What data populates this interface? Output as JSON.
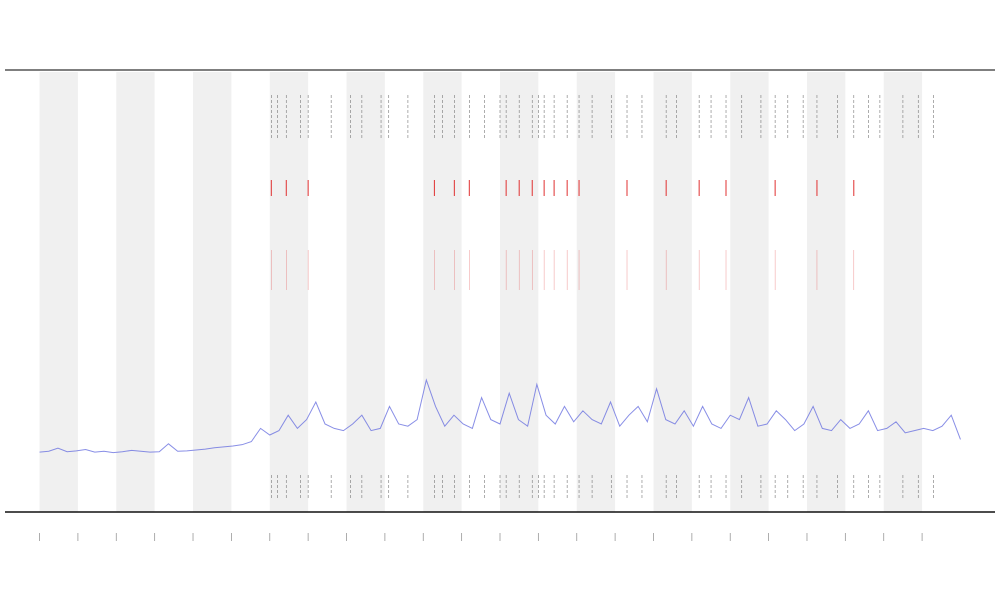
{
  "chart_data": {
    "type": "line",
    "x": [
      0,
      0.24,
      0.48,
      0.72,
      0.96,
      1.2,
      1.44,
      1.68,
      1.92,
      2.16,
      2.4,
      2.64,
      2.88,
      3.12,
      3.36,
      3.6,
      3.84,
      4.08,
      4.32,
      4.56,
      4.8,
      5.04,
      5.28,
      5.52,
      5.76,
      6,
      6.24,
      6.48,
      6.72,
      6.96,
      7.2,
      7.44,
      7.68,
      7.92,
      8.16,
      8.4,
      8.64,
      8.88,
      9.12,
      9.36,
      9.6,
      9.84,
      10.08,
      10.32,
      10.56,
      10.8,
      11.04,
      11.28,
      11.52,
      11.76,
      12,
      12.24,
      12.48,
      12.72,
      12.96,
      13.2,
      13.44,
      13.68,
      13.92,
      14.16,
      14.4,
      14.64,
      14.88,
      15.12,
      15.36,
      15.6,
      15.84,
      16.08,
      16.32,
      16.56,
      16.8,
      17.04,
      17.28,
      17.52,
      17.76,
      18,
      18.24,
      18.48,
      18.72,
      18.96,
      19.2,
      19.44,
      19.68,
      19.92,
      20.16,
      20.4,
      20.64,
      20.88,
      21.12,
      21.36,
      21.6,
      21.84,
      22.08,
      22.32,
      22.56,
      22.8,
      23.04,
      23.28,
      23.52,
      23.76,
      24
    ],
    "series": [
      {
        "color": "#6a72e0",
        "values": [
          13.6,
          13.8,
          14.5,
          13.7,
          13.9,
          14.2,
          13.6,
          13.8,
          13.5,
          13.7,
          14,
          13.8,
          13.6,
          13.7,
          15.5,
          13.8,
          13.9,
          14.1,
          14.3,
          14.6,
          14.8,
          15,
          15.3,
          16,
          19,
          17.5,
          18.5,
          22,
          19,
          21,
          25,
          20,
          19,
          18.5,
          20,
          22,
          18.5,
          19,
          24,
          20,
          19.5,
          21,
          30,
          24,
          19.5,
          22,
          20,
          19,
          26,
          21,
          20,
          27,
          21,
          19.5,
          29,
          22,
          20,
          24,
          20.5,
          23,
          21,
          20,
          25,
          19.5,
          22,
          24,
          20.5,
          28,
          21,
          20,
          23,
          19.5,
          24,
          20,
          19,
          22,
          21,
          26,
          19.5,
          20,
          23,
          21,
          18.5,
          20,
          24,
          19,
          18.5,
          21,
          19,
          20,
          23,
          18.5,
          19,
          20.5,
          18,
          18.5,
          19,
          18.5,
          19.5,
          22,
          16.5
        ]
      }
    ],
    "bands": [
      [
        0,
        1
      ],
      [
        2,
        3
      ],
      [
        4,
        5
      ],
      [
        6,
        7
      ],
      [
        8,
        9
      ],
      [
        10,
        11
      ],
      [
        12,
        13
      ],
      [
        14,
        15
      ],
      [
        16,
        17
      ],
      [
        18,
        19
      ],
      [
        20,
        21
      ],
      [
        22,
        23
      ]
    ],
    "events": {
      "color": "#777777",
      "x": [
        6.04,
        6.2,
        6.43,
        6.8,
        7.0,
        7.6,
        8.1,
        8.4,
        8.9,
        9.1,
        9.6,
        10.29,
        10.5,
        10.81,
        11.2,
        11.6,
        12.0,
        12.16,
        12.5,
        12.84,
        13.0,
        13.15,
        13.41,
        13.75,
        14.06,
        14.4,
        14.9,
        15.31,
        15.7,
        16.33,
        16.6,
        17.19,
        17.5,
        17.89,
        18.3,
        18.8,
        19.17,
        19.5,
        19.9,
        20.26,
        20.8,
        21.22,
        21.6,
        21.9,
        22.5,
        22.9,
        23.3
      ]
    },
    "alerts": {
      "color": "#e03030",
      "x": [
        6.04,
        6.43,
        7.0,
        10.29,
        10.81,
        11.2,
        12.16,
        12.5,
        12.84,
        13.15,
        13.41,
        13.75,
        14.06,
        15.31,
        16.33,
        17.19,
        17.89,
        19.17,
        20.26,
        21.22
      ]
    },
    "xlim": [
      -0.9,
      24.9
    ],
    "xticks": [
      0,
      1,
      2,
      3,
      4,
      5,
      6,
      7,
      8,
      9,
      10,
      11,
      12,
      13,
      14,
      15,
      16,
      17,
      18,
      19,
      20,
      21,
      22,
      23
    ],
    "ylim": [
      0,
      100
    ]
  }
}
